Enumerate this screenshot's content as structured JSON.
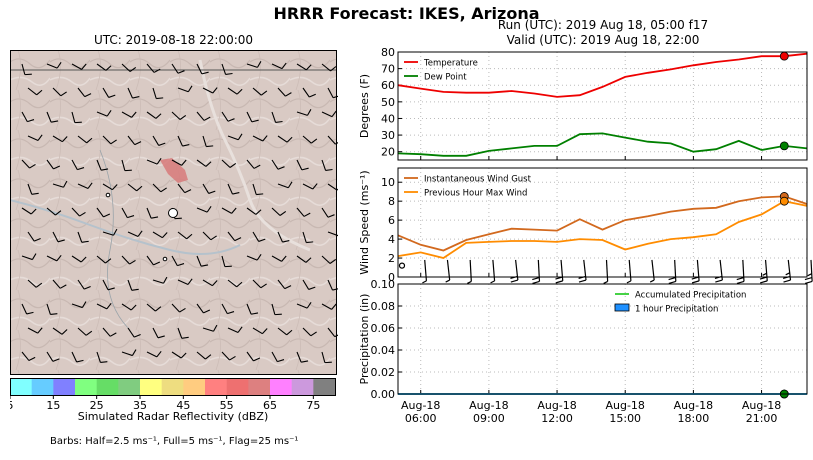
{
  "suptitle": "HRRR Forecast: IKES, Arizona",
  "map": {
    "title": "UTC: 2019-08-18 22:00:00",
    "colorbar": {
      "label": "Simulated Radar Reflectivity (dBZ)",
      "ticks": [
        "5",
        "15",
        "25",
        "35",
        "45",
        "55",
        "65",
        "75"
      ],
      "colors": [
        "#80ffff",
        "#66ccff",
        "#8080ff",
        "#80ff80",
        "#66dd66",
        "#80cc80",
        "#ffff80",
        "#eedd80",
        "#ffcc80",
        "#ff8080",
        "#ee7070",
        "#dd8080",
        "#ff80ff",
        "#cc99dd",
        "#808080"
      ]
    }
  },
  "barb_note": "Barbs: Half=2.5 ms⁻¹, Full=5 ms⁻¹, Flag=25 ms⁻¹",
  "run": {
    "line1": "Run (UTC): 2019 Aug 18, 05:00 f17",
    "line2": "Valid (UTC): 2019 Aug 18, 22:00"
  },
  "chart_data": [
    {
      "type": "line",
      "ylabel": "Degrees (F)",
      "ylim": [
        15,
        80
      ],
      "yticks": [
        20,
        30,
        40,
        50,
        60,
        70,
        80
      ],
      "x_hours": [
        5,
        6,
        7,
        8,
        9,
        10,
        11,
        12,
        13,
        14,
        15,
        16,
        17,
        18,
        19,
        20,
        21,
        22,
        23
      ],
      "series": [
        {
          "name": "Temperature",
          "color": "#ee0000",
          "values": [
            60,
            58,
            56,
            55.5,
            55.5,
            56.5,
            55,
            53,
            54,
            59,
            65,
            67.5,
            69.5,
            72,
            74,
            75.5,
            77.5,
            77.5,
            79
          ]
        },
        {
          "name": "Dew Point",
          "color": "#008000",
          "values": [
            19,
            18.5,
            17.5,
            17.5,
            20.5,
            22,
            23.5,
            23.5,
            30.5,
            31,
            28.5,
            26,
            25,
            20,
            21.5,
            26.5,
            21,
            23.5,
            22
          ]
        }
      ],
      "marker_hour": 22,
      "legend_loc": "upper left"
    },
    {
      "type": "line",
      "ylabel": "Wind Speed (ms⁻¹)",
      "ylim": [
        0,
        11.5
      ],
      "yticks": [
        0,
        2,
        4,
        6,
        8,
        10
      ],
      "x_hours": [
        5,
        6,
        7,
        8,
        9,
        10,
        11,
        12,
        13,
        14,
        15,
        16,
        17,
        18,
        19,
        20,
        21,
        22,
        23
      ],
      "series": [
        {
          "name": "Instantaneous Wind Gust",
          "color": "#d2691e",
          "values": [
            4.4,
            3.4,
            2.8,
            3.9,
            4.5,
            5.1,
            5.0,
            4.9,
            6.1,
            5.0,
            6.0,
            6.4,
            6.9,
            7.2,
            7.3,
            8.0,
            8.4,
            8.5,
            7.7
          ]
        },
        {
          "name": "Previous Hour Max Wind",
          "color": "#ff8c00",
          "values": [
            2.2,
            2.6,
            2.0,
            3.6,
            3.7,
            3.8,
            3.8,
            3.7,
            4.0,
            3.9,
            2.9,
            3.5,
            4.0,
            4.2,
            4.5,
            5.8,
            6.6,
            8.0,
            7.5
          ]
        }
      ],
      "barb_speeds": [
        1.2,
        1.8,
        2.5,
        3.2,
        3.6,
        3.9,
        4.0,
        4.0,
        3.9,
        3.7,
        3.2,
        3.4,
        4.0,
        4.4,
        5.0,
        5.8,
        6.3,
        6.9,
        6.6
      ],
      "marker_hour": 22,
      "legend_loc": "upper left"
    },
    {
      "type": "line",
      "ylabel": "Precipitation (in)",
      "ylim": [
        0,
        0.1
      ],
      "yticks": [
        "0.00",
        "0.02",
        "0.04",
        "0.06",
        "0.08",
        "0.10"
      ],
      "x_hours": [
        5,
        6,
        7,
        8,
        9,
        10,
        11,
        12,
        13,
        14,
        15,
        16,
        17,
        18,
        19,
        20,
        21,
        22,
        23
      ],
      "series": [
        {
          "name": "Accumulated Precipitation",
          "color": "#32cd32",
          "values": [
            0,
            0,
            0,
            0,
            0,
            0,
            0,
            0,
            0,
            0,
            0,
            0,
            0,
            0,
            0,
            0,
            0,
            0,
            0
          ]
        },
        {
          "name": "1 hour Precipitation",
          "color": "#1e90ff",
          "values": [
            0,
            0,
            0,
            0,
            0,
            0,
            0,
            0,
            0,
            0,
            0,
            0,
            0,
            0,
            0,
            0,
            0,
            0,
            0
          ]
        }
      ],
      "xticks": [
        {
          "hour": 6,
          "line1": "Aug-18",
          "line2": "06:00"
        },
        {
          "hour": 9,
          "line1": "Aug-18",
          "line2": "09:00"
        },
        {
          "hour": 12,
          "line1": "Aug-18",
          "line2": "12:00"
        },
        {
          "hour": 15,
          "line1": "Aug-18",
          "line2": "15:00"
        },
        {
          "hour": 18,
          "line1": "Aug-18",
          "line2": "18:00"
        },
        {
          "hour": 21,
          "line1": "Aug-18",
          "line2": "21:00"
        }
      ],
      "marker_hour": 22,
      "legend_loc": "upper right"
    }
  ]
}
